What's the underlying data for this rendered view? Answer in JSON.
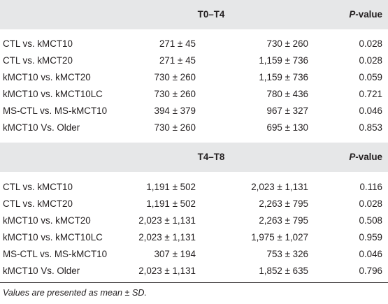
{
  "sections": [
    {
      "title": "T0–T4",
      "pvalue_prefix": "P",
      "pvalue_suffix": "-value",
      "rows": [
        {
          "label": "CTL vs. kMCT10",
          "a": "271 ± 45",
          "b": "730 ± 260",
          "p": "0.028"
        },
        {
          "label": "CTL vs. kMCT20",
          "a": "271 ± 45",
          "b": "1,159 ± 736",
          "p": "0.028"
        },
        {
          "label": "kMCT10 vs. kMCT20",
          "a": "730 ± 260",
          "b": "1,159 ± 736",
          "p": "0.059"
        },
        {
          "label": "kMCT10 vs. kMCT10LC",
          "a": "730 ± 260",
          "b": "780 ± 436",
          "p": "0.721"
        },
        {
          "label": "MS-CTL vs. MS-kMCT10",
          "a": "394 ± 379",
          "b": "967 ± 327",
          "p": "0.046"
        },
        {
          "label": "kMCT10 Vs. Older",
          "a": "730 ± 260",
          "b": "695 ± 130",
          "p": "0.853"
        }
      ]
    },
    {
      "title": "T4–T8",
      "pvalue_prefix": "P",
      "pvalue_suffix": "-value",
      "rows": [
        {
          "label": "CTL vs. kMCT10",
          "a": "1,191 ± 502",
          "b": "2,023 ± 1,131",
          "p": "0.116"
        },
        {
          "label": "CTL vs. kMCT20",
          "a": "1,191 ± 502",
          "b": "2,263 ± 795",
          "p": "0.028"
        },
        {
          "label": "kMCT10 vs. kMCT20",
          "a": "2,023 ± 1,131",
          "b": "2,263 ± 795",
          "p": "0.508"
        },
        {
          "label": "kMCT10 vs. kMCT10LC",
          "a": "2,023 ± 1,131",
          "b": "1,975 ± 1,027",
          "p": "0.959"
        },
        {
          "label": "MS-CTL vs. MS-kMCT10",
          "a": "307 ± 194",
          "b": "753 ± 326",
          "p": "0.046"
        },
        {
          "label": "kMCT10 Vs. Older",
          "a": "2,023 ± 1,131",
          "b": "1,852 ± 635",
          "p": "0.796"
        }
      ]
    }
  ],
  "footnote": "Values are presented as mean ± SD.",
  "colors": {
    "header_band": "#e6e7e8",
    "text": "#231f20"
  }
}
